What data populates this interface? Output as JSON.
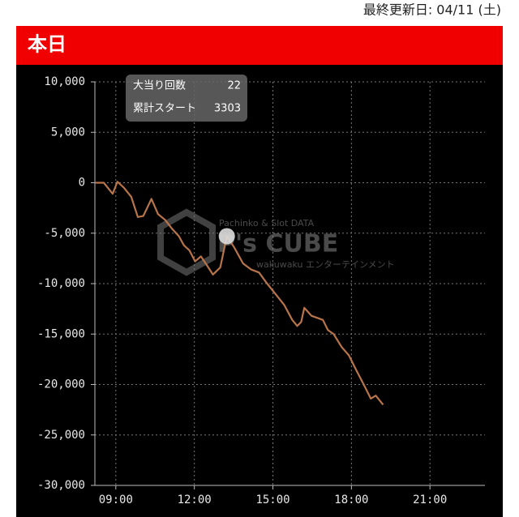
{
  "header": {
    "updated": "最終更新日: 04/11 (土)",
    "title": "本日"
  },
  "tooltip": {
    "rows": [
      [
        "大当り回数",
        "22"
      ],
      [
        "累計スタート",
        "3303"
      ]
    ]
  },
  "watermark": {
    "tagline": "Pachinko & Slot DATA",
    "brand": "P's CUBE",
    "sub": "wakuwaku エンターテインメント"
  },
  "chart_data": {
    "type": "line",
    "x": [
      8.2,
      8.54,
      8.88,
      9.06,
      9.31,
      9.59,
      9.84,
      10.05,
      10.36,
      10.61,
      10.89,
      11.16,
      11.41,
      11.6,
      11.81,
      12.03,
      12.25,
      12.46,
      12.71,
      12.99,
      13.24,
      13.52,
      13.86,
      14.17,
      14.47,
      14.78,
      15.09,
      15.43,
      15.74,
      15.93,
      16.08,
      16.2,
      16.48,
      16.7,
      16.91,
      17.1,
      17.32,
      17.63,
      17.9,
      18.19,
      18.43,
      18.74,
      18.93,
      19.21
    ],
    "series": [
      {
        "color": "#b8744a",
        "values": [
          0,
          0,
          -1100,
          100,
          -500,
          -1400,
          -3400,
          -3300,
          -1600,
          -3100,
          -3700,
          -4600,
          -5300,
          -6200,
          -6700,
          -7800,
          -7300,
          -8100,
          -9100,
          -8400,
          -5300,
          -6400,
          -8000,
          -8600,
          -8900,
          -10000,
          -11000,
          -12100,
          -13600,
          -14200,
          -13800,
          -12400,
          -13200,
          -13400,
          -13600,
          -14600,
          -15000,
          -16300,
          -17100,
          -18600,
          -19800,
          -21400,
          -21100,
          -22000
        ]
      }
    ],
    "xlim": [
      8.2,
      23.1
    ],
    "xticks": [
      {
        "value": 9,
        "label": "09:00"
      },
      {
        "value": 12,
        "label": "12:00"
      },
      {
        "value": 15,
        "label": "15:00"
      },
      {
        "value": 18,
        "label": "18:00"
      },
      {
        "value": 21,
        "label": "21:00"
      }
    ],
    "ylim": [
      -30000,
      10000
    ],
    "yticks": [
      {
        "value": 10000,
        "label": "10,000"
      },
      {
        "value": 5000,
        "label": "5,000"
      },
      0,
      {
        "value": -5000,
        "label": "-5,000"
      },
      {
        "value": -10000,
        "label": "-10,000"
      },
      {
        "value": -15000,
        "label": "-15,000"
      },
      {
        "value": -20000,
        "label": "-20,000"
      },
      {
        "value": -25000,
        "label": "-25,000"
      },
      {
        "value": -30000,
        "label": "-30,000"
      }
    ],
    "grid": true
  }
}
